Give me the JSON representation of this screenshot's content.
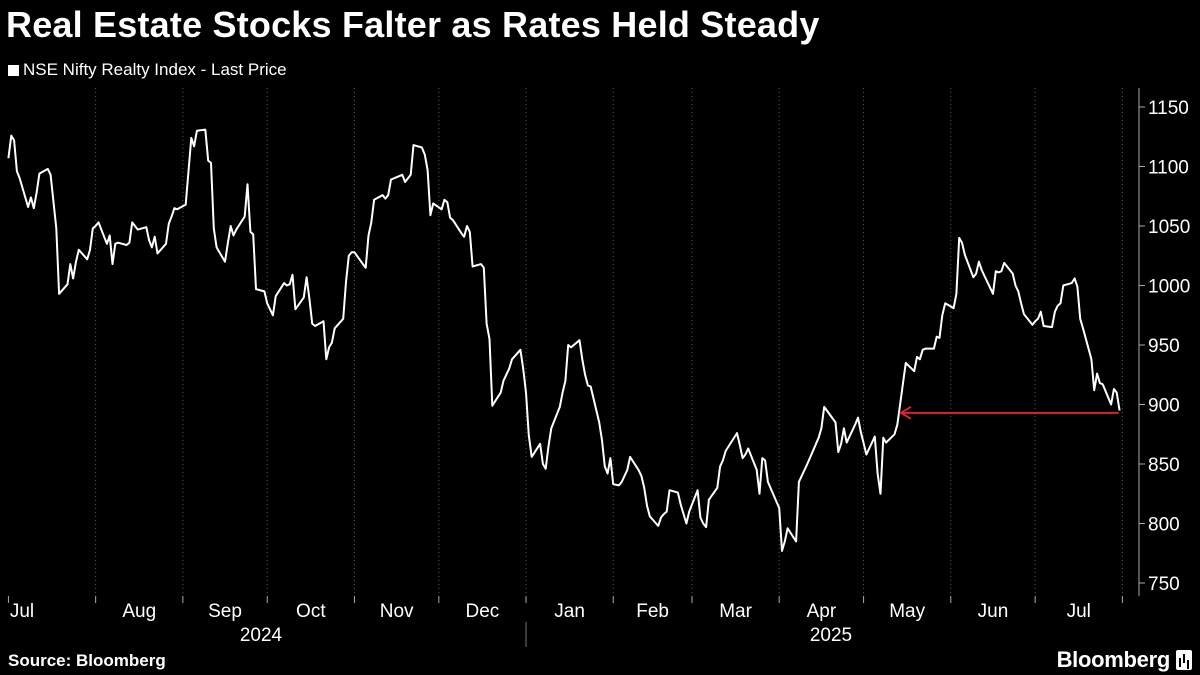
{
  "title": "Real Estate Stocks Falter as Rates Held Steady",
  "legend": {
    "label": "NSE Nifty Realty Index - Last Price"
  },
  "source": "Source: Bloomberg",
  "brand": {
    "name": "Bloomberg",
    "icon": "bloomberg-chart-icon"
  },
  "colors": {
    "background": "#000000",
    "line": "#ffffff",
    "annotation": "#d9262a",
    "grid": "#555555"
  },
  "chart_data": {
    "type": "line",
    "title": "Real Estate Stocks Falter as Rates Held Steady",
    "xlabel": "",
    "ylabel": "",
    "ylim": [
      742,
      1165
    ],
    "yticks": [
      750,
      800,
      850,
      900,
      950,
      1000,
      1050,
      1100,
      1150
    ],
    "grid": "vertical dotted at month boundaries",
    "legend_position": "top-left",
    "months": [
      {
        "label": "Jul",
        "year": "2024"
      },
      {
        "label": "Aug",
        "year": "2024"
      },
      {
        "label": "Sep",
        "year": "2024"
      },
      {
        "label": "Oct",
        "year": "2024"
      },
      {
        "label": "Nov",
        "year": "2024"
      },
      {
        "label": "Dec",
        "year": "2024"
      },
      {
        "label": "Jan",
        "year": "2025"
      },
      {
        "label": "Feb",
        "year": "2025"
      },
      {
        "label": "Mar",
        "year": "2025"
      },
      {
        "label": "Apr",
        "year": "2025"
      },
      {
        "label": "May",
        "year": "2025"
      },
      {
        "label": "Jun",
        "year": "2025"
      },
      {
        "label": "Jul",
        "year": "2025"
      }
    ],
    "years": [
      "2024",
      "2025"
    ],
    "series": [
      {
        "name": "NSE Nifty Realty Index - Last Price",
        "x": [
          "2024-07-01",
          "2024-07-02",
          "2024-07-03",
          "2024-07-04",
          "2024-07-05",
          "2024-07-08",
          "2024-07-09",
          "2024-07-10",
          "2024-07-11",
          "2024-07-12",
          "2024-07-15",
          "2024-07-16",
          "2024-07-18",
          "2024-07-19",
          "2024-07-22",
          "2024-07-23",
          "2024-07-24",
          "2024-07-25",
          "2024-07-26",
          "2024-07-29",
          "2024-07-30",
          "2024-07-31",
          "2024-08-01",
          "2024-08-02",
          "2024-08-05",
          "2024-08-06",
          "2024-08-07",
          "2024-08-08",
          "2024-08-09",
          "2024-08-12",
          "2024-08-13",
          "2024-08-14",
          "2024-08-16",
          "2024-08-19",
          "2024-08-20",
          "2024-08-21",
          "2024-08-22",
          "2024-08-23",
          "2024-08-26",
          "2024-08-27",
          "2024-08-28",
          "2024-08-29",
          "2024-08-30",
          "2024-09-02",
          "2024-09-03",
          "2024-09-04",
          "2024-09-05",
          "2024-09-06",
          "2024-09-09",
          "2024-09-10",
          "2024-09-11",
          "2024-09-12",
          "2024-09-13",
          "2024-09-16",
          "2024-09-17",
          "2024-09-18",
          "2024-09-19",
          "2024-09-20",
          "2024-09-23",
          "2024-09-24",
          "2024-09-25",
          "2024-09-26",
          "2024-09-27",
          "2024-09-30",
          "2024-10-01",
          "2024-10-03",
          "2024-10-04",
          "2024-10-07",
          "2024-10-08",
          "2024-10-09",
          "2024-10-10",
          "2024-10-11",
          "2024-10-14",
          "2024-10-15",
          "2024-10-16",
          "2024-10-17",
          "2024-10-18",
          "2024-10-21",
          "2024-10-22",
          "2024-10-23",
          "2024-10-24",
          "2024-10-25",
          "2024-10-28",
          "2024-10-29",
          "2024-10-30",
          "2024-10-31",
          "2024-11-01",
          "2024-11-04",
          "2024-11-05",
          "2024-11-06",
          "2024-11-07",
          "2024-11-08",
          "2024-11-11",
          "2024-11-12",
          "2024-11-13",
          "2024-11-14",
          "2024-11-18",
          "2024-11-19",
          "2024-11-21",
          "2024-11-22",
          "2024-11-25",
          "2024-11-26",
          "2024-11-27",
          "2024-11-28",
          "2024-11-29",
          "2024-12-02",
          "2024-12-03",
          "2024-12-04",
          "2024-12-05",
          "2024-12-06",
          "2024-12-09",
          "2024-12-10",
          "2024-12-11",
          "2024-12-12",
          "2024-12-13",
          "2024-12-16",
          "2024-12-17",
          "2024-12-18",
          "2024-12-19",
          "2024-12-20",
          "2024-12-23",
          "2024-12-24",
          "2024-12-26",
          "2024-12-27",
          "2024-12-30",
          "2024-12-31",
          "2025-01-01",
          "2025-01-02",
          "2025-01-03",
          "2025-01-06",
          "2025-01-07",
          "2025-01-08",
          "2025-01-09",
          "2025-01-10",
          "2025-01-13",
          "2025-01-14",
          "2025-01-15",
          "2025-01-16",
          "2025-01-17",
          "2025-01-20",
          "2025-01-21",
          "2025-01-22",
          "2025-01-23",
          "2025-01-24",
          "2025-01-27",
          "2025-01-28",
          "2025-01-29",
          "2025-01-30",
          "2025-01-31",
          "2025-02-01",
          "2025-02-03",
          "2025-02-04",
          "2025-02-05",
          "2025-02-06",
          "2025-02-07",
          "2025-02-10",
          "2025-02-11",
          "2025-02-12",
          "2025-02-13",
          "2025-02-14",
          "2025-02-17",
          "2025-02-18",
          "2025-02-19",
          "2025-02-20",
          "2025-02-21",
          "2025-02-24",
          "2025-02-25",
          "2025-02-27",
          "2025-02-28",
          "2025-03-03",
          "2025-03-04",
          "2025-03-05",
          "2025-03-06",
          "2025-03-07",
          "2025-03-10",
          "2025-03-11",
          "2025-03-12",
          "2025-03-13",
          "2025-03-17",
          "2025-03-18",
          "2025-03-19",
          "2025-03-20",
          "2025-03-21",
          "2025-03-24",
          "2025-03-25",
          "2025-03-26",
          "2025-03-27",
          "2025-03-28",
          "2025-04-01",
          "2025-04-02",
          "2025-04-03",
          "2025-04-04",
          "2025-04-07",
          "2025-04-08",
          "2025-04-09",
          "2025-04-11",
          "2025-04-15",
          "2025-04-16",
          "2025-04-17",
          "2025-04-21",
          "2025-04-22",
          "2025-04-23",
          "2025-04-24",
          "2025-04-25",
          "2025-04-28",
          "2025-04-29",
          "2025-04-30",
          "2025-05-02",
          "2025-05-05",
          "2025-05-06",
          "2025-05-07",
          "2025-05-08",
          "2025-05-09",
          "2025-05-12",
          "2025-05-13",
          "2025-05-14",
          "2025-05-15",
          "2025-05-16",
          "2025-05-19",
          "2025-05-20",
          "2025-05-21",
          "2025-05-22",
          "2025-05-23",
          "2025-05-26",
          "2025-05-27",
          "2025-05-28",
          "2025-05-29",
          "2025-05-30",
          "2025-06-02",
          "2025-06-03",
          "2025-06-04",
          "2025-06-05",
          "2025-06-06",
          "2025-06-09",
          "2025-06-10",
          "2025-06-11",
          "2025-06-12",
          "2025-06-13",
          "2025-06-16",
          "2025-06-17",
          "2025-06-18",
          "2025-06-19",
          "2025-06-20",
          "2025-06-23",
          "2025-06-24",
          "2025-06-25",
          "2025-06-26",
          "2025-06-27",
          "2025-06-30",
          "2025-07-01",
          "2025-07-02",
          "2025-07-03",
          "2025-07-04",
          "2025-07-07",
          "2025-07-08",
          "2025-07-09",
          "2025-07-10",
          "2025-07-11",
          "2025-07-14",
          "2025-07-15",
          "2025-07-16",
          "2025-07-17",
          "2025-07-18",
          "2025-07-21",
          "2025-07-22",
          "2025-07-23",
          "2025-07-24",
          "2025-07-25",
          "2025-07-28",
          "2025-07-29",
          "2025-07-30",
          "2025-07-31"
        ],
        "values": [
          1107,
          1126,
          1122,
          1096,
          1090,
          1066,
          1074,
          1065,
          1078,
          1094,
          1098,
          1093,
          1048,
          993,
          1001,
          1018,
          1006,
          1020,
          1030,
          1022,
          1030,
          1048,
          1050,
          1053,
          1035,
          1042,
          1018,
          1035,
          1036,
          1034,
          1036,
          1053,
          1047,
          1049,
          1038,
          1032,
          1041,
          1027,
          1035,
          1052,
          1058,
          1065,
          1064,
          1068,
          1096,
          1124,
          1117,
          1130,
          1131,
          1105,
          1103,
          1048,
          1032,
          1020,
          1036,
          1050,
          1042,
          1047,
          1058,
          1085,
          1045,
          1043,
          997,
          995,
          985,
          975,
          991,
          1002,
          1000,
          1001,
          1009,
          980,
          990,
          1007,
          989,
          968,
          966,
          970,
          938,
          948,
          952,
          964,
          972,
          1003,
          1025,
          1028,
          1028,
          1018,
          1015,
          1042,
          1053,
          1072,
          1076,
          1073,
          1076,
          1089,
          1093,
          1087,
          1093,
          1118,
          1116,
          1110,
          1097,
          1059,
          1069,
          1064,
          1072,
          1070,
          1057,
          1055,
          1044,
          1041,
          1050,
          1045,
          1016,
          1018,
          1015,
          968,
          955,
          899,
          910,
          920,
          930,
          938,
          946,
          930,
          910,
          874,
          856,
          867,
          850,
          846,
          865,
          880,
          898,
          910,
          920,
          950,
          948,
          954,
          938,
          925,
          916,
          915,
          885,
          870,
          848,
          842,
          855,
          833,
          832,
          835,
          840,
          845,
          856,
          845,
          840,
          830,
          815,
          806,
          798,
          805,
          808,
          810,
          828,
          826,
          816,
          800,
          810,
          828,
          805,
          800,
          797,
          820,
          830,
          848,
          853,
          861,
          876,
          866,
          855,
          858,
          863,
          845,
          825,
          855,
          853,
          835,
          813,
          777,
          785,
          796,
          785,
          835,
          840,
          850,
          872,
          880,
          898,
          885,
          860,
          867,
          880,
          868,
          883,
          889,
          877,
          858,
          873,
          842,
          825,
          872,
          868,
          875,
          883,
          900,
          918,
          935,
          928,
          940,
          938,
          946,
          947,
          947,
          957,
          956,
          975,
          985,
          981,
          993,
          1040,
          1036,
          1026,
          1007,
          1010,
          1020,
          1013,
          1008,
          993,
          1012,
          1011,
          1012,
          1019,
          1010,
          1000,
          995,
          985,
          976,
          967,
          970,
          972,
          978,
          966,
          965,
          978,
          983,
          985,
          1000,
          1002,
          1006,
          999,
          972,
          964,
          938,
          912,
          926,
          918,
          917,
          900,
          913,
          910,
          895
        ]
      }
    ],
    "annotations": [
      {
        "type": "arrow",
        "direction": "left",
        "from": {
          "x": "2025-07-30",
          "y": 893
        },
        "to": {
          "x": "2025-05-15",
          "y": 893
        },
        "color": "#d9262a"
      }
    ]
  }
}
